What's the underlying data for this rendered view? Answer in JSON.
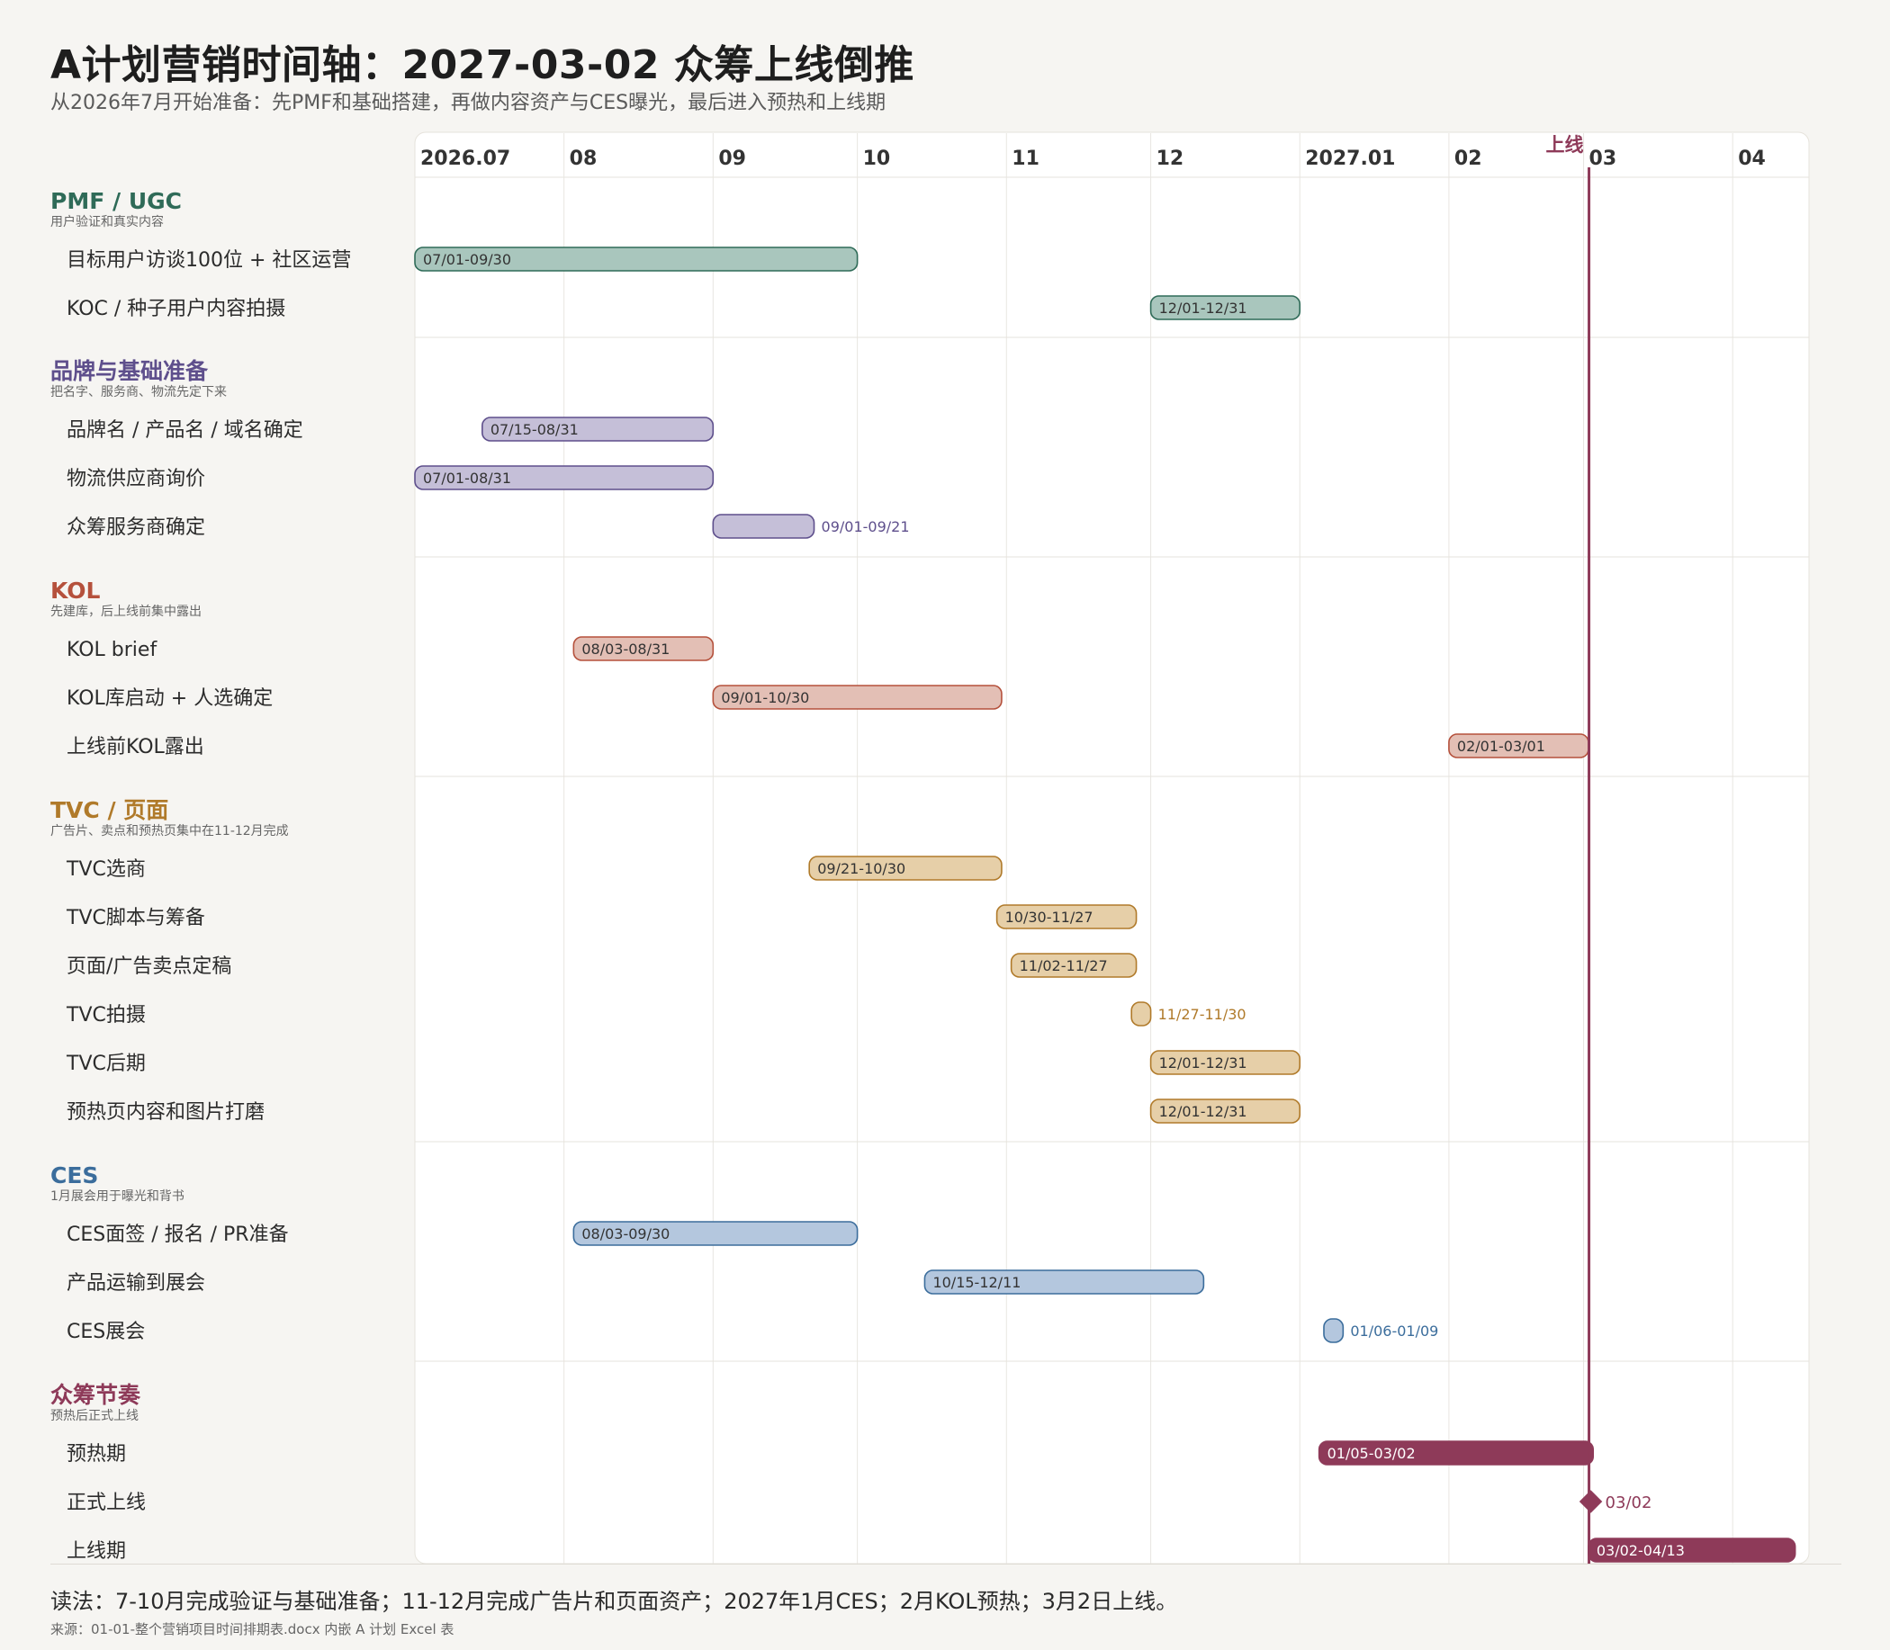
{
  "title": "A计划营销时间轴：2027-03-02 众筹上线倒推",
  "subtitle": "从2026年7月开始准备：先PMF和基础搭建，再做内容资产与CES曝光，最后进入预热和上线期",
  "reading": "读法：7-10月完成验证与基础准备；11-12月完成广告片和页面资产；2027年1月CES；2月KOL预热；3月2日上线。",
  "source": "来源：01-01-整个营销项目时间排期表.docx 内嵌 A 计划 Excel 表",
  "colors": {
    "background": "#f6f5f2",
    "panel": "#ffffff",
    "milestone": "#8e3a59"
  },
  "chart_data": {
    "type": "gantt",
    "x_range": [
      "2026-07-01",
      "2027-04-15"
    ],
    "months": [
      {
        "label": "2026.07",
        "date": "2026-07-01"
      },
      {
        "label": "08",
        "date": "2026-08-01"
      },
      {
        "label": "09",
        "date": "2026-09-01"
      },
      {
        "label": "10",
        "date": "2026-10-01"
      },
      {
        "label": "11",
        "date": "2026-11-01"
      },
      {
        "label": "12",
        "date": "2026-12-01"
      },
      {
        "label": "2027.01",
        "date": "2027-01-01"
      },
      {
        "label": "02",
        "date": "2027-02-01"
      },
      {
        "label": "03",
        "date": "2027-03-01"
      },
      {
        "label": "04",
        "date": "2027-04-01"
      }
    ],
    "launch": {
      "label": "上线",
      "date": "2027-03-02"
    },
    "groups": [
      {
        "name": "PMF / UGC",
        "desc": "用户验证和真实内容",
        "color": "#2f6b58",
        "fill": "#a9c6bd",
        "tasks": [
          {
            "name": "目标用户访谈100位 + 社区运营",
            "start": "2026-07-01",
            "end": "2026-09-30",
            "label": "07/01-09/30"
          },
          {
            "name": "KOC / 种子用户内容拍摄",
            "start": "2026-12-01",
            "end": "2026-12-31",
            "label": "12/01-12/31"
          }
        ]
      },
      {
        "name": "品牌与基础准备",
        "desc": "把名字、服务商、物流先定下来",
        "color": "#5e4f8c",
        "fill": "#c5bfd8",
        "tasks": [
          {
            "name": "品牌名 / 产品名 / 域名确定",
            "start": "2026-07-15",
            "end": "2026-08-31",
            "label": "07/15-08/31"
          },
          {
            "name": "物流供应商询价",
            "start": "2026-07-01",
            "end": "2026-08-31",
            "label": "07/01-08/31"
          },
          {
            "name": "众筹服务商确定",
            "start": "2026-09-01",
            "end": "2026-09-21",
            "label": "09/01-09/21"
          }
        ]
      },
      {
        "name": "KOL",
        "desc": "先建库，后上线前集中露出",
        "color": "#b5513c",
        "fill": "#e3bfb5",
        "tasks": [
          {
            "name": "KOL brief",
            "start": "2026-08-03",
            "end": "2026-08-31",
            "label": "08/03-08/31"
          },
          {
            "name": "KOL库启动 + 人选确定",
            "start": "2026-09-01",
            "end": "2026-10-30",
            "label": "09/01-10/30"
          },
          {
            "name": "上线前KOL露出",
            "start": "2027-02-01",
            "end": "2027-03-01",
            "label": "02/01-03/01"
          }
        ]
      },
      {
        "name": "TVC / 页面",
        "desc": "广告片、卖点和预热页集中在11-12月完成",
        "color": "#b07a2a",
        "fill": "#e6cfa8",
        "tasks": [
          {
            "name": "TVC选商",
            "start": "2026-09-21",
            "end": "2026-10-30",
            "label": "09/21-10/30"
          },
          {
            "name": "TVC脚本与筹备",
            "start": "2026-10-30",
            "end": "2026-11-27",
            "label": "10/30-11/27"
          },
          {
            "name": "页面/广告卖点定稿",
            "start": "2026-11-02",
            "end": "2026-11-27",
            "label": "11/02-11/27"
          },
          {
            "name": "TVC拍摄",
            "start": "2026-11-27",
            "end": "2026-11-30",
            "label": "11/27-11/30"
          },
          {
            "name": "TVC后期",
            "start": "2026-12-01",
            "end": "2026-12-31",
            "label": "12/01-12/31"
          },
          {
            "name": "预热页内容和图片打磨",
            "start": "2026-12-01",
            "end": "2026-12-31",
            "label": "12/01-12/31"
          }
        ]
      },
      {
        "name": "CES",
        "desc": "1月展会用于曝光和背书",
        "color": "#3b6d9c",
        "fill": "#b4c7de",
        "tasks": [
          {
            "name": "CES面签 / 报名 / PR准备",
            "start": "2026-08-03",
            "end": "2026-09-30",
            "label": "08/03-09/30"
          },
          {
            "name": "产品运输到展会",
            "start": "2026-10-15",
            "end": "2026-12-11",
            "label": "10/15-12/11"
          },
          {
            "name": "CES展会",
            "start": "2027-01-06",
            "end": "2027-01-09",
            "label": "01/06-01/09"
          }
        ]
      },
      {
        "name": "众筹节奏",
        "desc": "预热后正式上线",
        "color": "#8e3a59",
        "fill": "#8e3a59",
        "tasks": [
          {
            "name": "预热期",
            "start": "2027-01-05",
            "end": "2027-03-02",
            "label": "01/05-03/02",
            "solid": true
          },
          {
            "name": "正式上线",
            "start": "2027-03-02",
            "end": "2027-03-02",
            "label": "03/02",
            "milestone": true
          },
          {
            "name": "上线期",
            "start": "2027-03-02",
            "end": "2027-04-13",
            "label": "03/02-04/13",
            "solid": true
          }
        ]
      }
    ]
  }
}
